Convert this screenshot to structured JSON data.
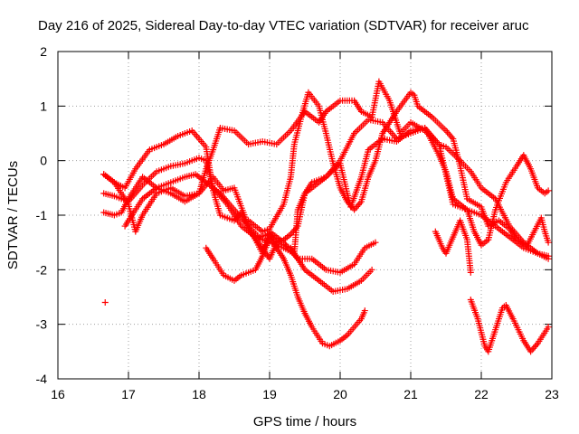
{
  "chart_data": {
    "type": "scatter",
    "title": "Day 216 of 2025, Sidereal Day-to-day VTEC variation (SDTVAR) for receiver aruc",
    "xlabel": "GPS time / hours",
    "ylabel": "SDTVAR / TECUs",
    "xlim": [
      16,
      23
    ],
    "ylim": [
      -4,
      2
    ],
    "xticks": [
      "16",
      "17",
      "18",
      "19",
      "20",
      "21",
      "22",
      "23"
    ],
    "yticks": [
      "2",
      "1",
      "0",
      "-1",
      "-2",
      "-3",
      "-4"
    ],
    "grid": true,
    "marker": "+",
    "series_color": "#ff0000",
    "series": [
      {
        "name": "trace 1",
        "points": [
          [
            16.65,
            -0.25
          ],
          [
            16.8,
            -0.4
          ],
          [
            17.0,
            -0.8
          ],
          [
            17.1,
            -1.3
          ],
          [
            17.2,
            -1.0
          ],
          [
            17.4,
            -0.6
          ],
          [
            17.6,
            -0.5
          ],
          [
            17.8,
            -0.65
          ],
          [
            18.0,
            -0.6
          ],
          [
            18.2,
            -0.3
          ],
          [
            18.35,
            -0.55
          ],
          [
            18.5,
            -0.5
          ],
          [
            18.7,
            -1.2
          ],
          [
            18.9,
            -1.7
          ],
          [
            19.0,
            -1.3
          ],
          [
            19.2,
            -1.5
          ],
          [
            19.4,
            -1.8
          ],
          [
            19.6,
            -1.8
          ],
          [
            19.8,
            -2.0
          ],
          [
            20.0,
            -2.05
          ],
          [
            20.2,
            -1.9
          ],
          [
            20.35,
            -1.6
          ],
          [
            20.5,
            -1.5
          ]
        ]
      },
      {
        "name": "trace 2",
        "points": [
          [
            16.65,
            -0.6
          ],
          [
            16.8,
            -0.65
          ],
          [
            17.0,
            -0.75
          ],
          [
            17.2,
            -0.45
          ],
          [
            17.4,
            -0.2
          ],
          [
            17.6,
            -0.1
          ],
          [
            17.8,
            -0.05
          ],
          [
            18.0,
            0.05
          ],
          [
            18.1,
            0.0
          ],
          [
            18.2,
            -0.5
          ],
          [
            18.4,
            -0.8
          ],
          [
            18.6,
            -1.2
          ],
          [
            18.8,
            -1.4
          ],
          [
            19.0,
            -1.5
          ],
          [
            19.2,
            -1.6
          ],
          [
            19.35,
            -1.7
          ],
          [
            19.4,
            -0.9
          ],
          [
            19.5,
            -0.6
          ],
          [
            19.6,
            -0.5
          ],
          [
            19.8,
            -0.3
          ],
          [
            20.0,
            0.0
          ],
          [
            20.2,
            0.5
          ],
          [
            20.4,
            0.75
          ],
          [
            20.6,
            0.7
          ],
          [
            20.8,
            0.4
          ],
          [
            21.0,
            0.5
          ],
          [
            21.2,
            0.6
          ],
          [
            21.4,
            0.1
          ],
          [
            21.5,
            -0.2
          ],
          [
            21.6,
            -0.7
          ],
          [
            21.8,
            -0.9
          ],
          [
            22.0,
            -1.0
          ],
          [
            22.2,
            -1.2
          ],
          [
            22.4,
            -1.4
          ],
          [
            22.6,
            -1.6
          ],
          [
            22.8,
            -1.7
          ],
          [
            22.95,
            -1.8
          ]
        ]
      },
      {
        "name": "trace 3",
        "points": [
          [
            16.65,
            -0.95
          ],
          [
            16.8,
            -1.0
          ],
          [
            16.9,
            -0.95
          ],
          [
            17.0,
            -0.7
          ],
          [
            17.2,
            -0.3
          ],
          [
            17.4,
            -0.5
          ],
          [
            17.6,
            -0.6
          ],
          [
            17.8,
            -0.75
          ],
          [
            18.0,
            -0.6
          ],
          [
            18.1,
            -0.15
          ],
          [
            18.2,
            0.2
          ],
          [
            18.3,
            0.6
          ],
          [
            18.5,
            0.55
          ],
          [
            18.7,
            0.3
          ],
          [
            18.9,
            0.35
          ],
          [
            19.1,
            0.3
          ],
          [
            19.3,
            0.55
          ],
          [
            19.5,
            0.9
          ],
          [
            19.7,
            0.7
          ],
          [
            19.8,
            0.9
          ],
          [
            20.0,
            1.1
          ],
          [
            20.2,
            1.1
          ],
          [
            20.3,
            0.9
          ],
          [
            20.45,
            0.8
          ],
          [
            20.55,
            1.45
          ],
          [
            20.7,
            1.1
          ],
          [
            20.85,
            0.5
          ],
          [
            21.0,
            0.7
          ],
          [
            21.2,
            0.55
          ],
          [
            21.4,
            0.3
          ],
          [
            21.5,
            0.25
          ],
          [
            21.7,
            0.0
          ],
          [
            21.85,
            -0.2
          ],
          [
            22.0,
            -0.5
          ],
          [
            22.2,
            -0.7
          ],
          [
            22.4,
            -1.2
          ],
          [
            22.6,
            -1.5
          ],
          [
            22.8,
            -1.7
          ],
          [
            22.95,
            -1.75
          ]
        ]
      },
      {
        "name": "trace 4",
        "points": [
          [
            16.65,
            -0.25
          ],
          [
            16.8,
            -0.4
          ],
          [
            16.95,
            -0.5
          ],
          [
            17.1,
            -0.15
          ],
          [
            17.3,
            0.2
          ],
          [
            17.5,
            0.3
          ],
          [
            17.7,
            0.45
          ],
          [
            17.9,
            0.55
          ],
          [
            18.1,
            0.25
          ],
          [
            18.2,
            -0.55
          ],
          [
            18.3,
            -1.0
          ],
          [
            18.5,
            -1.1
          ],
          [
            18.6,
            -0.95
          ],
          [
            18.75,
            -1.35
          ],
          [
            18.9,
            -1.6
          ],
          [
            19.0,
            -1.8
          ],
          [
            19.1,
            -1.5
          ],
          [
            19.2,
            -1.45
          ],
          [
            19.3,
            -1.35
          ],
          [
            19.4,
            -1.2
          ],
          [
            19.5,
            -0.6
          ],
          [
            19.6,
            -0.4
          ],
          [
            19.8,
            -0.3
          ],
          [
            20.0,
            -0.05
          ],
          [
            20.1,
            -0.6
          ],
          [
            20.15,
            -0.85
          ],
          [
            20.3,
            -0.3
          ],
          [
            20.4,
            0.2
          ],
          [
            20.6,
            0.4
          ],
          [
            20.8,
            0.35
          ],
          [
            21.0,
            0.55
          ],
          [
            21.2,
            0.6
          ],
          [
            21.4,
            0.3
          ],
          [
            21.6,
            -0.8
          ],
          [
            21.8,
            -0.9
          ],
          [
            21.9,
            -1.3
          ],
          [
            22.0,
            -1.55
          ],
          [
            22.1,
            -1.45
          ],
          [
            22.2,
            -0.9
          ],
          [
            22.35,
            -0.4
          ],
          [
            22.5,
            -0.1
          ],
          [
            22.6,
            0.1
          ],
          [
            22.7,
            -0.15
          ],
          [
            22.8,
            -0.5
          ],
          [
            22.9,
            -0.6
          ],
          [
            22.95,
            -0.55
          ]
        ]
      },
      {
        "name": "trace 5",
        "points": [
          [
            16.95,
            -1.2
          ],
          [
            17.0,
            -1.1
          ],
          [
            17.2,
            -0.7
          ],
          [
            17.4,
            -0.5
          ],
          [
            17.6,
            -0.4
          ],
          [
            17.8,
            -0.3
          ],
          [
            17.95,
            -0.25
          ],
          [
            18.1,
            -0.4
          ],
          [
            18.3,
            -0.6
          ],
          [
            18.5,
            -0.9
          ],
          [
            18.7,
            -1.2
          ],
          [
            18.85,
            -1.4
          ],
          [
            19.0,
            -1.35
          ],
          [
            19.1,
            -1.5
          ],
          [
            19.3,
            -1.6
          ],
          [
            19.4,
            -1.8
          ],
          [
            19.5,
            -2.0
          ],
          [
            19.6,
            -2.1
          ],
          [
            19.8,
            -2.3
          ],
          [
            19.9,
            -2.4
          ],
          [
            20.1,
            -2.35
          ],
          [
            20.3,
            -2.2
          ],
          [
            20.45,
            -2.0
          ]
        ]
      },
      {
        "name": "trace 6",
        "points": [
          [
            18.1,
            -1.6
          ],
          [
            18.2,
            -1.8
          ],
          [
            18.35,
            -2.1
          ],
          [
            18.5,
            -2.2
          ],
          [
            18.6,
            -2.1
          ],
          [
            18.8,
            -2.0
          ],
          [
            18.9,
            -1.75
          ],
          [
            19.0,
            -1.4
          ],
          [
            19.1,
            -1.6
          ],
          [
            19.2,
            -1.8
          ],
          [
            19.3,
            -2.1
          ],
          [
            19.4,
            -2.5
          ],
          [
            19.5,
            -2.8
          ],
          [
            19.6,
            -3.05
          ],
          [
            19.75,
            -3.35
          ],
          [
            19.85,
            -3.4
          ],
          [
            20.0,
            -3.3
          ],
          [
            20.1,
            -3.2
          ],
          [
            20.3,
            -2.9
          ],
          [
            20.35,
            -2.75
          ]
        ]
      },
      {
        "name": "trace 7",
        "points": [
          [
            18.7,
            -1.1
          ],
          [
            18.9,
            -1.3
          ],
          [
            19.0,
            -1.25
          ],
          [
            19.2,
            -0.8
          ],
          [
            19.3,
            -0.3
          ],
          [
            19.35,
            0.3
          ],
          [
            19.45,
            0.8
          ],
          [
            19.55,
            1.25
          ],
          [
            19.7,
            1.0
          ],
          [
            19.8,
            0.5
          ],
          [
            19.9,
            -0.05
          ],
          [
            20.0,
            -0.5
          ],
          [
            20.1,
            -0.75
          ],
          [
            20.2,
            -0.9
          ],
          [
            20.3,
            -0.75
          ],
          [
            20.4,
            -0.3
          ],
          [
            20.5,
            0.0
          ],
          [
            20.6,
            0.5
          ],
          [
            20.7,
            0.7
          ],
          [
            20.8,
            0.9
          ],
          [
            21.0,
            1.25
          ],
          [
            21.05,
            1.2
          ],
          [
            21.1,
            1.0
          ],
          [
            21.3,
            0.8
          ],
          [
            21.5,
            0.55
          ],
          [
            21.6,
            0.4
          ],
          [
            21.7,
            -0.1
          ],
          [
            21.8,
            -0.7
          ],
          [
            22.0,
            -0.85
          ],
          [
            22.1,
            -1.2
          ],
          [
            22.25,
            -1.1
          ],
          [
            22.4,
            -1.25
          ],
          [
            22.5,
            -1.45
          ],
          [
            22.65,
            -1.55
          ],
          [
            22.85,
            -1.05
          ],
          [
            22.9,
            -1.3
          ],
          [
            22.95,
            -1.5
          ]
        ]
      },
      {
        "name": "trace 8",
        "points": [
          [
            21.35,
            -1.3
          ],
          [
            21.45,
            -1.6
          ],
          [
            21.5,
            -1.7
          ],
          [
            21.6,
            -1.4
          ],
          [
            21.7,
            -1.1
          ],
          [
            21.8,
            -1.45
          ],
          [
            21.85,
            -2.05
          ]
        ]
      },
      {
        "name": "trace 9",
        "points": [
          [
            21.85,
            -2.55
          ],
          [
            21.95,
            -2.9
          ],
          [
            22.05,
            -3.4
          ],
          [
            22.1,
            -3.5
          ],
          [
            22.2,
            -3.1
          ],
          [
            22.3,
            -2.7
          ],
          [
            22.35,
            -2.65
          ],
          [
            22.45,
            -2.9
          ],
          [
            22.6,
            -3.3
          ],
          [
            22.7,
            -3.5
          ],
          [
            22.8,
            -3.35
          ],
          [
            22.95,
            -3.05
          ]
        ]
      },
      {
        "name": "isolated point",
        "points": [
          [
            16.67,
            -2.6
          ]
        ]
      }
    ]
  }
}
